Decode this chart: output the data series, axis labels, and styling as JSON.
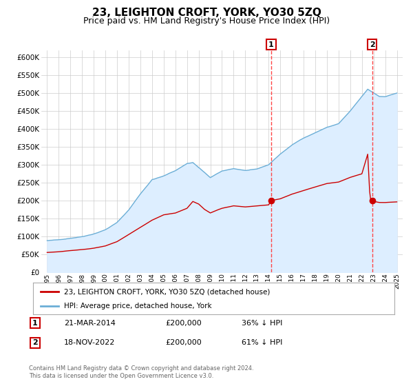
{
  "title": "23, LEIGHTON CROFT, YORK, YO30 5ZQ",
  "subtitle": "Price paid vs. HM Land Registry's House Price Index (HPI)",
  "footer1": "Contains HM Land Registry data © Crown copyright and database right 2024.",
  "footer2": "This data is licensed under the Open Government Licence v3.0.",
  "legend_line1": "23, LEIGHTON CROFT, YORK, YO30 5ZQ (detached house)",
  "legend_line2": "HPI: Average price, detached house, York",
  "annotation1_label": "1",
  "annotation1_date": "21-MAR-2014",
  "annotation1_price": "£200,000",
  "annotation1_hpi": "36% ↓ HPI",
  "annotation2_label": "2",
  "annotation2_date": "18-NOV-2022",
  "annotation2_price": "£200,000",
  "annotation2_hpi": "61% ↓ HPI",
  "x_start_year": 1995,
  "x_end_year": 2025,
  "ylim": [
    0,
    620000
  ],
  "yticks": [
    0,
    50000,
    100000,
    150000,
    200000,
    250000,
    300000,
    350000,
    400000,
    450000,
    500000,
    550000,
    600000
  ],
  "sale1_year": 2014.22,
  "sale1_price": 200000,
  "sale2_year": 2022.89,
  "sale2_price": 200000,
  "hpi_color": "#6baed6",
  "hpi_fill_color": "#ddeeff",
  "red_line_color": "#cc0000",
  "dashed_line_color": "#ff4444",
  "background_color": "#ffffff",
  "grid_color": "#cccccc",
  "title_fontsize": 11,
  "subtitle_fontsize": 9,
  "axis_label_color": "#333333"
}
